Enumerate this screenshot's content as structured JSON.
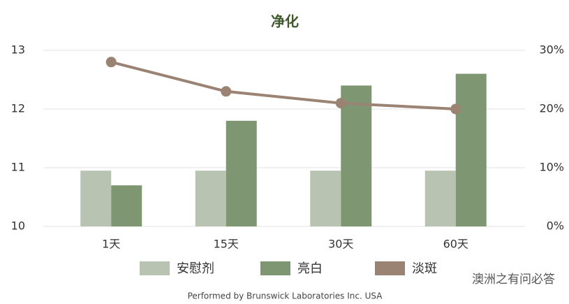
{
  "chart_data": {
    "type": "bar",
    "title": "净化",
    "categories": [
      "1天",
      "15天",
      "30天",
      "60天"
    ],
    "series": [
      {
        "name": "安慰剂",
        "color": "#b9c3b1",
        "type": "bar",
        "values": [
          10.95,
          10.95,
          10.95,
          10.95
        ]
      },
      {
        "name": "亮白",
        "color": "#7f9673",
        "type": "bar",
        "values": [
          10.7,
          11.8,
          12.4,
          12.6
        ]
      },
      {
        "name": "淡斑",
        "color": "#9b8373",
        "type": "line",
        "axis": "y2",
        "values": [
          28,
          23,
          21,
          20
        ]
      }
    ],
    "ylim": [
      10,
      13
    ],
    "yticks": [
      10,
      11,
      12,
      13
    ],
    "y2lim": [
      0,
      30
    ],
    "y2ticks": [
      {
        "value": 0,
        "label": "0%"
      },
      {
        "value": 10,
        "label": "10%"
      },
      {
        "value": 20,
        "label": "20%"
      },
      {
        "value": 30,
        "label": "30%"
      }
    ],
    "grid": true,
    "legend": "bottom",
    "footnote": "Performed by Brunswick Laboratories Inc. USA",
    "watermark": "澳洲之有问必答"
  }
}
